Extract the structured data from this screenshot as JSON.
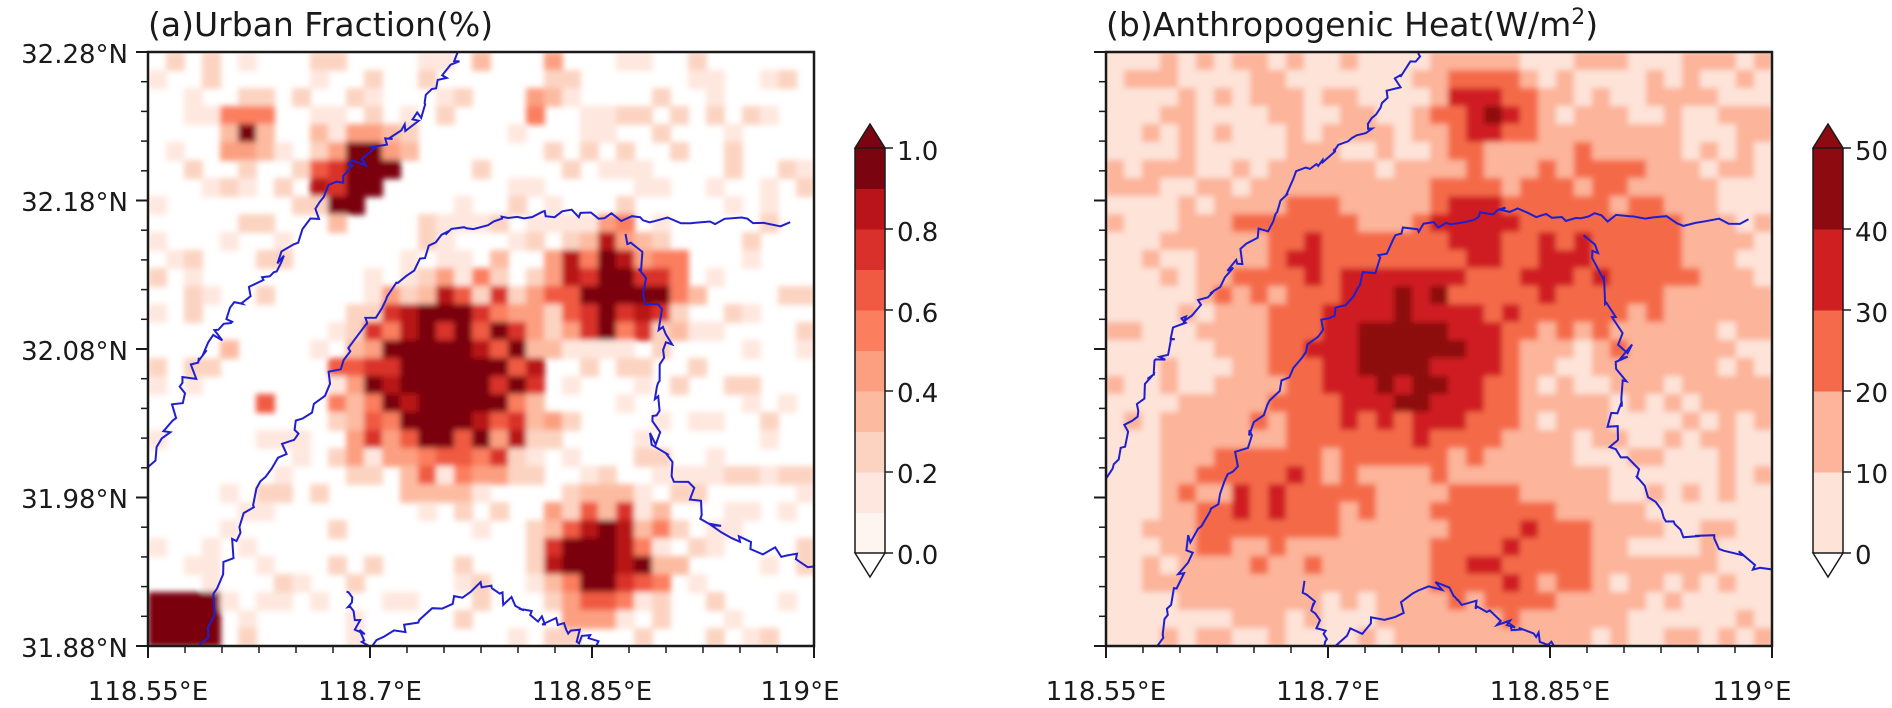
{
  "panels": [
    {
      "title": "(a)Urban Fraction(%)",
      "xticks": [
        "118.55°E",
        "118.7°E",
        "118.85°E",
        "119°E"
      ],
      "yticks": [
        "32.28°N",
        "32.18°N",
        "32.08°N",
        "31.98°N",
        "31.88°N"
      ],
      "colorbar": {
        "labels": [
          "1.0",
          "0.8",
          "0.6",
          "0.4",
          "0.2",
          "0.0"
        ],
        "levels": [
          0,
          0.1,
          0.2,
          0.3,
          0.4,
          0.5,
          0.6,
          0.7,
          0.8,
          0.9,
          1.0
        ],
        "extend": "both"
      }
    },
    {
      "title_prefix": "(b)Anthropogenic Heat(W/m",
      "title_sup": "2",
      "title_suffix": ")",
      "xticks": [
        "118.55°E",
        "118.7°E",
        "118.85°E",
        "119°E"
      ],
      "colorbar": {
        "labels": [
          "50",
          "40",
          "30",
          "20",
          "10",
          "0"
        ],
        "levels": [
          0,
          10,
          20,
          30,
          40,
          50
        ],
        "extend": "both"
      }
    }
  ],
  "map_extent": {
    "lon": [
      118.55,
      119.0
    ],
    "lat": [
      31.88,
      32.28
    ]
  },
  "colors": {
    "ramp": [
      "#fff5f0",
      "#fee0d2",
      "#fcbba1",
      "#fc9272",
      "#fb6a4a",
      "#ef3b2c",
      "#cb181d",
      "#a50f15",
      "#67000d"
    ],
    "coastline": "#1f1fcf",
    "frame": "#1a1a1a"
  }
}
